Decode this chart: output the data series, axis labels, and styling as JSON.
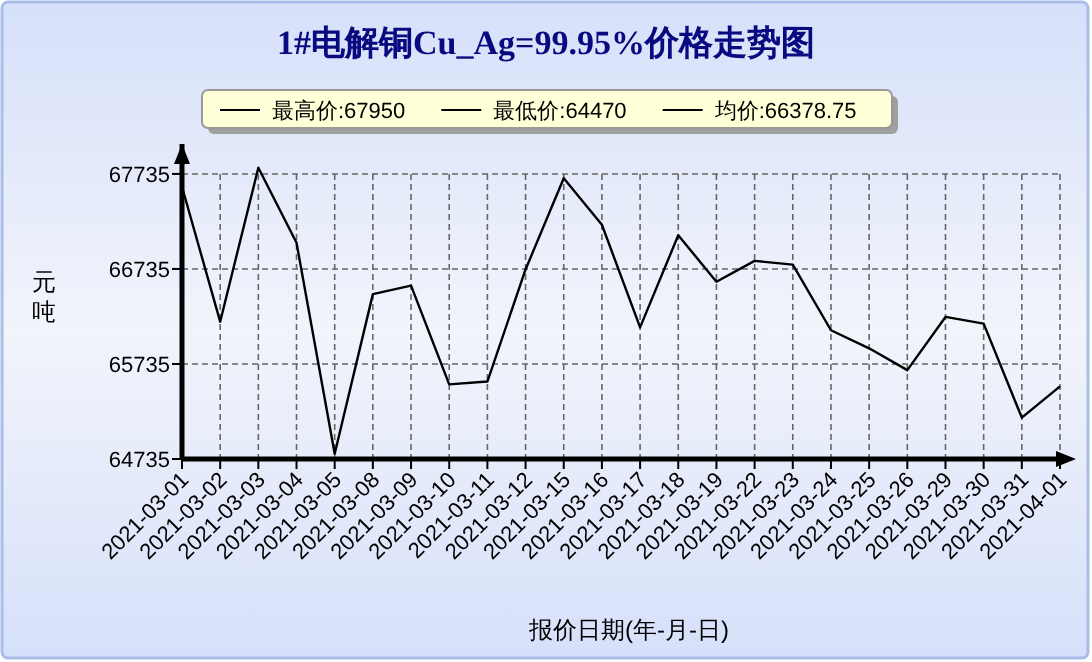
{
  "chart_data": {
    "type": "line",
    "title": "1#电解铜Cu_Ag=99.95%价格走势图",
    "ylabel": "元吨",
    "xlabel": "报价日期(年-月-日)",
    "annotations": [
      "最高价:67950",
      "最低价:64470",
      "均价:66378.75"
    ],
    "categories": [
      "2021-03-01",
      "2021-03-02",
      "2021-03-03",
      "2021-03-04",
      "2021-03-05",
      "2021-03-08",
      "2021-03-09",
      "2021-03-10",
      "2021-03-11",
      "2021-03-12",
      "2021-03-15",
      "2021-03-16",
      "2021-03-17",
      "2021-03-18",
      "2021-03-19",
      "2021-03-22",
      "2021-03-23",
      "2021-03-24",
      "2021-03-25",
      "2021-03-26",
      "2021-03-29",
      "2021-03-30",
      "2021-03-31",
      "2021-04-01"
    ],
    "series": [
      {
        "color": "#000000",
        "values": [
          67600,
          66180,
          67800,
          67010,
          64790,
          66470,
          66560,
          65520,
          65550,
          66730,
          67690,
          67200,
          66120,
          67090,
          66600,
          66820,
          66780,
          66090,
          65900,
          65670,
          66230,
          66160,
          65170,
          65500
        ]
      }
    ],
    "ylim": [
      64735,
      68050
    ],
    "yticks": [
      64735,
      65735,
      66735,
      67735
    ],
    "grid": true,
    "line_style": "solid",
    "marker": "none"
  }
}
